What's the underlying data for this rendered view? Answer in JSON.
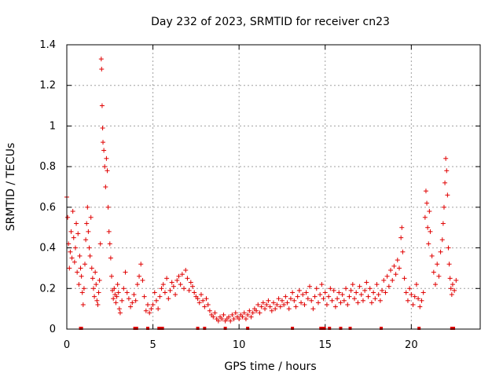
{
  "chart_data": {
    "type": "scatter",
    "title": "Day 232 of 2023, SRMTID for receiver cn23",
    "xlabel": "GPS time / hours",
    "ylabel": "SRMTID / TECUs",
    "xlim": [
      0,
      24
    ],
    "ylim": [
      0,
      1.4
    ],
    "xticks": [
      0,
      5,
      10,
      15,
      20
    ],
    "xtick_labels": [
      "0",
      "5",
      "10",
      "15",
      "20"
    ],
    "yticks": [
      0,
      0.2,
      0.4,
      0.6,
      0.8,
      1.0,
      1.2,
      1.4
    ],
    "ytick_labels": [
      "0",
      "0.2",
      "0.4",
      "0.6",
      "0.8",
      "1",
      "1.2",
      "1.4"
    ],
    "grid": true,
    "marker": "+",
    "color": "#e00000",
    "series": [
      {
        "name": "SRMTID",
        "points": [
          [
            0.0,
            0.65
          ],
          [
            0.05,
            0.55
          ],
          [
            0.1,
            0.42
          ],
          [
            0.15,
            0.3
          ],
          [
            0.2,
            0.38
          ],
          [
            0.25,
            0.48
          ],
          [
            0.3,
            0.35
          ],
          [
            0.35,
            0.58
          ],
          [
            0.4,
            0.45
          ],
          [
            0.45,
            0.33
          ],
          [
            0.5,
            0.4
          ],
          [
            0.55,
            0.52
          ],
          [
            0.6,
            0.28
          ],
          [
            0.65,
            0.47
          ],
          [
            0.7,
            0.22
          ],
          [
            0.75,
            0.36
          ],
          [
            0.8,
            0.3
          ],
          [
            0.85,
            0.26
          ],
          [
            0.9,
            0.18
          ],
          [
            0.95,
            0.12
          ],
          [
            1.0,
            0.2
          ],
          [
            1.05,
            0.32
          ],
          [
            1.1,
            0.44
          ],
          [
            1.15,
            0.52
          ],
          [
            1.2,
            0.6
          ],
          [
            1.25,
            0.48
          ],
          [
            1.3,
            0.4
          ],
          [
            1.35,
            0.36
          ],
          [
            1.4,
            0.55
          ],
          [
            1.45,
            0.3
          ],
          [
            1.5,
            0.25
          ],
          [
            1.55,
            0.2
          ],
          [
            1.6,
            0.16
          ],
          [
            1.65,
            0.28
          ],
          [
            1.7,
            0.22
          ],
          [
            1.75,
            0.14
          ],
          [
            1.8,
            0.12
          ],
          [
            1.85,
            0.18
          ],
          [
            1.9,
            0.24
          ],
          [
            1.95,
            0.42
          ],
          [
            2.0,
            1.33
          ],
          [
            2.02,
            1.28
          ],
          [
            2.05,
            1.1
          ],
          [
            2.08,
            0.99
          ],
          [
            2.1,
            0.92
          ],
          [
            2.15,
            0.88
          ],
          [
            2.2,
            0.8
          ],
          [
            2.25,
            0.7
          ],
          [
            2.3,
            0.84
          ],
          [
            2.35,
            0.78
          ],
          [
            2.4,
            0.6
          ],
          [
            2.45,
            0.48
          ],
          [
            2.5,
            0.42
          ],
          [
            2.55,
            0.35
          ],
          [
            2.6,
            0.26
          ],
          [
            2.65,
            0.19
          ],
          [
            2.7,
            0.15
          ],
          [
            2.75,
            0.2
          ],
          [
            2.8,
            0.17
          ],
          [
            2.85,
            0.13
          ],
          [
            2.9,
            0.16
          ],
          [
            2.95,
            0.22
          ],
          [
            3.0,
            0.18
          ],
          [
            3.05,
            0.1
          ],
          [
            3.1,
            0.08
          ],
          [
            3.2,
            0.14
          ],
          [
            3.3,
            0.2
          ],
          [
            3.4,
            0.28
          ],
          [
            3.5,
            0.18
          ],
          [
            3.6,
            0.15
          ],
          [
            3.7,
            0.11
          ],
          [
            3.8,
            0.13
          ],
          [
            3.9,
            0.17
          ],
          [
            4.0,
            0.14
          ],
          [
            4.1,
            0.22
          ],
          [
            4.2,
            0.26
          ],
          [
            4.3,
            0.32
          ],
          [
            4.4,
            0.24
          ],
          [
            4.5,
            0.16
          ],
          [
            4.6,
            0.09
          ],
          [
            4.7,
            0.12
          ],
          [
            4.8,
            0.08
          ],
          [
            4.9,
            0.1
          ],
          [
            5.0,
            0.12
          ],
          [
            5.1,
            0.18
          ],
          [
            5.2,
            0.14
          ],
          [
            5.3,
            0.1
          ],
          [
            5.4,
            0.16
          ],
          [
            5.5,
            0.2
          ],
          [
            5.6,
            0.22
          ],
          [
            5.7,
            0.18
          ],
          [
            5.8,
            0.25
          ],
          [
            5.9,
            0.15
          ],
          [
            6.0,
            0.19
          ],
          [
            6.1,
            0.23
          ],
          [
            6.2,
            0.21
          ],
          [
            6.3,
            0.17
          ],
          [
            6.4,
            0.24
          ],
          [
            6.5,
            0.26
          ],
          [
            6.6,
            0.22
          ],
          [
            6.7,
            0.27
          ],
          [
            6.8,
            0.2
          ],
          [
            6.9,
            0.29
          ],
          [
            7.0,
            0.25
          ],
          [
            7.1,
            0.19
          ],
          [
            7.2,
            0.23
          ],
          [
            7.3,
            0.21
          ],
          [
            7.4,
            0.18
          ],
          [
            7.5,
            0.16
          ],
          [
            7.6,
            0.15
          ],
          [
            7.7,
            0.13
          ],
          [
            7.8,
            0.17
          ],
          [
            7.9,
            0.14
          ],
          [
            8.0,
            0.11
          ],
          [
            8.1,
            0.15
          ],
          [
            8.2,
            0.12
          ],
          [
            8.3,
            0.09
          ],
          [
            8.4,
            0.07
          ],
          [
            8.5,
            0.06
          ],
          [
            8.6,
            0.08
          ],
          [
            8.7,
            0.05
          ],
          [
            8.8,
            0.04
          ],
          [
            8.9,
            0.06
          ],
          [
            9.0,
            0.05
          ],
          [
            9.1,
            0.07
          ],
          [
            9.2,
            0.04
          ],
          [
            9.3,
            0.05
          ],
          [
            9.4,
            0.06
          ],
          [
            9.5,
            0.04
          ],
          [
            9.6,
            0.07
          ],
          [
            9.7,
            0.05
          ],
          [
            9.8,
            0.08
          ],
          [
            9.9,
            0.06
          ],
          [
            10.0,
            0.05
          ],
          [
            10.1,
            0.07
          ],
          [
            10.2,
            0.06
          ],
          [
            10.3,
            0.08
          ],
          [
            10.4,
            0.05
          ],
          [
            10.5,
            0.07
          ],
          [
            10.6,
            0.09
          ],
          [
            10.7,
            0.06
          ],
          [
            10.8,
            0.08
          ],
          [
            10.9,
            0.1
          ],
          [
            11.0,
            0.09
          ],
          [
            11.1,
            0.12
          ],
          [
            11.2,
            0.08
          ],
          [
            11.3,
            0.11
          ],
          [
            11.4,
            0.13
          ],
          [
            11.5,
            0.1
          ],
          [
            11.6,
            0.12
          ],
          [
            11.7,
            0.14
          ],
          [
            11.8,
            0.11
          ],
          [
            11.9,
            0.09
          ],
          [
            12.0,
            0.13
          ],
          [
            12.1,
            0.1
          ],
          [
            12.2,
            0.12
          ],
          [
            12.3,
            0.15
          ],
          [
            12.4,
            0.11
          ],
          [
            12.5,
            0.14
          ],
          [
            12.6,
            0.12
          ],
          [
            12.7,
            0.16
          ],
          [
            12.8,
            0.13
          ],
          [
            12.9,
            0.1
          ],
          [
            13.0,
            0.15
          ],
          [
            13.1,
            0.18
          ],
          [
            13.2,
            0.14
          ],
          [
            13.3,
            0.11
          ],
          [
            13.4,
            0.16
          ],
          [
            13.5,
            0.19
          ],
          [
            13.6,
            0.13
          ],
          [
            13.7,
            0.17
          ],
          [
            13.8,
            0.12
          ],
          [
            13.9,
            0.18
          ],
          [
            14.0,
            0.15
          ],
          [
            14.1,
            0.21
          ],
          [
            14.2,
            0.14
          ],
          [
            14.3,
            0.1
          ],
          [
            14.4,
            0.16
          ],
          [
            14.5,
            0.2
          ],
          [
            14.6,
            0.13
          ],
          [
            14.7,
            0.17
          ],
          [
            14.8,
            0.22
          ],
          [
            14.9,
            0.15
          ],
          [
            15.0,
            0.18
          ],
          [
            15.1,
            0.12
          ],
          [
            15.2,
            0.16
          ],
          [
            15.3,
            0.2
          ],
          [
            15.4,
            0.14
          ],
          [
            15.5,
            0.19
          ],
          [
            15.6,
            0.11
          ],
          [
            15.7,
            0.15
          ],
          [
            15.8,
            0.18
          ],
          [
            15.9,
            0.13
          ],
          [
            16.0,
            0.17
          ],
          [
            16.1,
            0.14
          ],
          [
            16.2,
            0.2
          ],
          [
            16.3,
            0.12
          ],
          [
            16.4,
            0.16
          ],
          [
            16.5,
            0.19
          ],
          [
            16.6,
            0.22
          ],
          [
            16.7,
            0.15
          ],
          [
            16.8,
            0.18
          ],
          [
            16.9,
            0.13
          ],
          [
            17.0,
            0.21
          ],
          [
            17.1,
            0.17
          ],
          [
            17.2,
            0.14
          ],
          [
            17.3,
            0.19
          ],
          [
            17.4,
            0.23
          ],
          [
            17.5,
            0.16
          ],
          [
            17.6,
            0.2
          ],
          [
            17.7,
            0.13
          ],
          [
            17.8,
            0.18
          ],
          [
            17.9,
            0.15
          ],
          [
            18.0,
            0.22
          ],
          [
            18.1,
            0.17
          ],
          [
            18.2,
            0.14
          ],
          [
            18.3,
            0.19
          ],
          [
            18.4,
            0.24
          ],
          [
            18.5,
            0.18
          ],
          [
            18.6,
            0.26
          ],
          [
            18.7,
            0.21
          ],
          [
            18.8,
            0.29
          ],
          [
            18.9,
            0.24
          ],
          [
            19.0,
            0.31
          ],
          [
            19.1,
            0.27
          ],
          [
            19.2,
            0.34
          ],
          [
            19.3,
            0.3
          ],
          [
            19.4,
            0.45
          ],
          [
            19.45,
            0.5
          ],
          [
            19.5,
            0.38
          ],
          [
            19.6,
            0.25
          ],
          [
            19.7,
            0.18
          ],
          [
            19.8,
            0.14
          ],
          [
            19.9,
            0.2
          ],
          [
            20.0,
            0.17
          ],
          [
            20.1,
            0.12
          ],
          [
            20.2,
            0.16
          ],
          [
            20.3,
            0.22
          ],
          [
            20.4,
            0.15
          ],
          [
            20.5,
            0.11
          ],
          [
            20.6,
            0.14
          ],
          [
            20.7,
            0.18
          ],
          [
            20.8,
            0.55
          ],
          [
            20.85,
            0.68
          ],
          [
            20.9,
            0.62
          ],
          [
            20.95,
            0.5
          ],
          [
            21.0,
            0.42
          ],
          [
            21.05,
            0.58
          ],
          [
            21.1,
            0.48
          ],
          [
            21.2,
            0.36
          ],
          [
            21.3,
            0.28
          ],
          [
            21.4,
            0.22
          ],
          [
            21.5,
            0.32
          ],
          [
            21.6,
            0.26
          ],
          [
            21.7,
            0.38
          ],
          [
            21.8,
            0.44
          ],
          [
            21.85,
            0.52
          ],
          [
            21.9,
            0.6
          ],
          [
            21.95,
            0.72
          ],
          [
            22.0,
            0.84
          ],
          [
            22.05,
            0.78
          ],
          [
            22.1,
            0.66
          ],
          [
            22.15,
            0.4
          ],
          [
            22.2,
            0.32
          ],
          [
            22.25,
            0.25
          ],
          [
            22.3,
            0.2
          ],
          [
            22.35,
            0.17
          ],
          [
            22.4,
            0.22
          ],
          [
            22.5,
            0.19
          ],
          [
            22.6,
            0.24
          ]
        ]
      }
    ],
    "zero_points_x": [
      0.8,
      0.85,
      3.95,
      4.05,
      4.7,
      5.35,
      5.45,
      5.55,
      7.6,
      8.0,
      9.2,
      10.5,
      13.1,
      14.75,
      14.85,
      14.95,
      15.25,
      15.9,
      16.45,
      18.25,
      20.45,
      22.35,
      22.45
    ]
  }
}
